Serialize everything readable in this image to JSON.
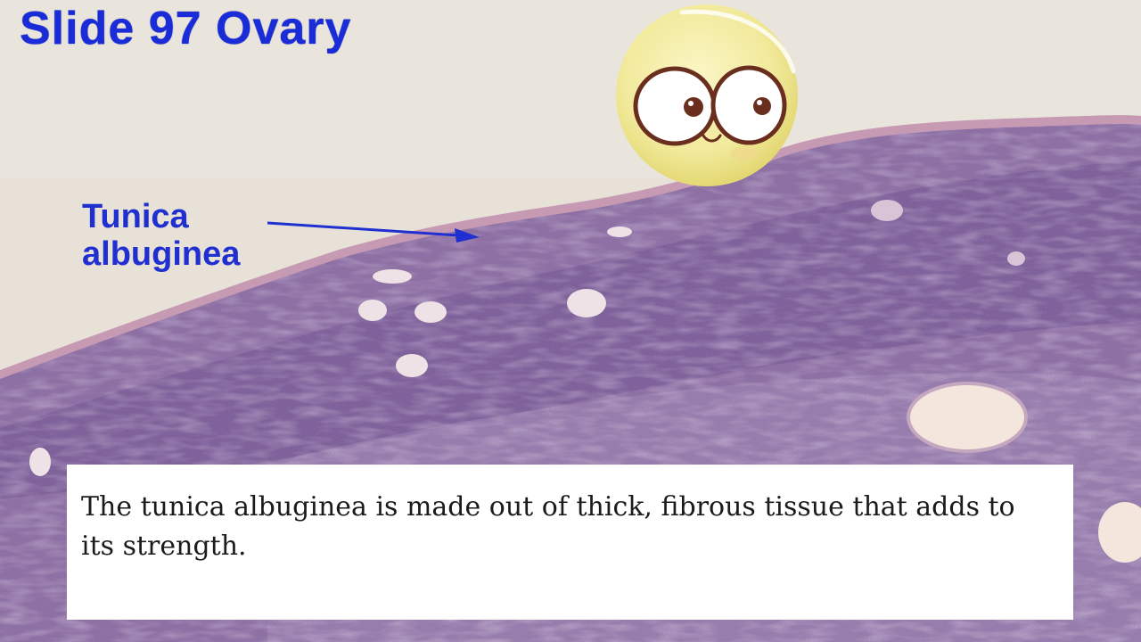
{
  "slide": {
    "title": "Slide 97 Ovary",
    "label": {
      "line1": "Tunica",
      "line2": "albuginea"
    },
    "caption": "The tunica albuginea is made out of thick, fibrous tissue that adds to its strength."
  },
  "colors": {
    "title": "#1a2bd8",
    "tissue": "#8a6a9e",
    "background": "#e6e0d6",
    "caption_bg": "#ffffff"
  },
  "icons": [
    "mascot-face-icon",
    "arrow-pointer"
  ]
}
